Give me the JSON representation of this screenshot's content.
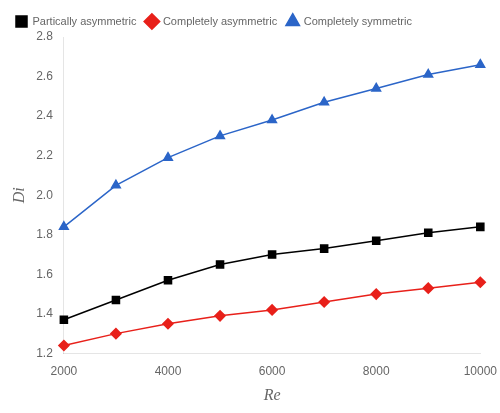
{
  "chart_data": {
    "type": "line",
    "x": [
      2000,
      3000,
      4000,
      5000,
      6000,
      7000,
      8000,
      9000,
      10000
    ],
    "series": [
      {
        "name": "Partically asymmetric",
        "color": "#000000",
        "marker": "square",
        "values": [
          1.37,
          1.47,
          1.57,
          1.65,
          1.7,
          1.73,
          1.77,
          1.81,
          1.84
        ]
      },
      {
        "name": "Completely asymmetric",
        "color": "#e8201a",
        "marker": "diamond",
        "values": [
          1.24,
          1.3,
          1.35,
          1.39,
          1.42,
          1.46,
          1.5,
          1.53,
          1.56
        ]
      },
      {
        "name": "Completely symmetric",
        "color": "#2b65c8",
        "marker": "triangle",
        "values": [
          1.84,
          2.05,
          2.19,
          2.3,
          2.38,
          2.47,
          2.54,
          2.61,
          2.66
        ]
      }
    ],
    "x_label": "Re",
    "y_label": "Di",
    "xlim": [
      2000,
      10000
    ],
    "xticks": [
      2000,
      4000,
      6000,
      8000,
      10000
    ],
    "ylim": [
      1.2,
      2.8
    ],
    "yticks": [
      1.2,
      1.4,
      1.6,
      1.8,
      {
        "value": 2.0,
        "label": "2.0"
      },
      2.2,
      2.4,
      2.6,
      2.8
    ],
    "grid": false,
    "legend": "upper left"
  }
}
